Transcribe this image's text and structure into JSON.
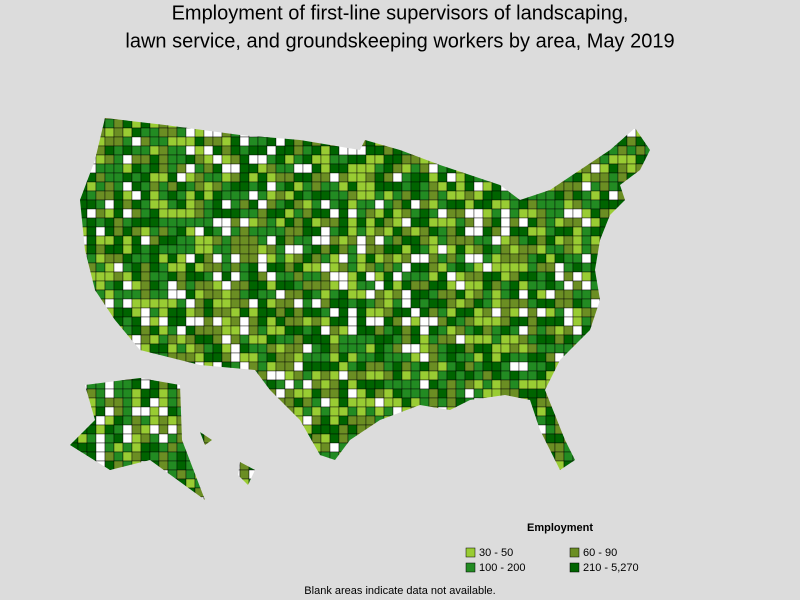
{
  "title": [
    "Employment of first-line supervisors of landscaping,",
    "lawn service, and groundskeeping workers by area, May 2019"
  ],
  "legend": {
    "title": "Employment",
    "items": [
      {
        "label": "30 - 50",
        "color": "#99cc33"
      },
      {
        "label": "60 - 90",
        "color": "#6b8e23"
      },
      {
        "label": "100 - 200",
        "color": "#228b22"
      },
      {
        "label": "210 - 5,270",
        "color": "#006400"
      }
    ]
  },
  "footnote": "Blank areas indicate data not available."
}
